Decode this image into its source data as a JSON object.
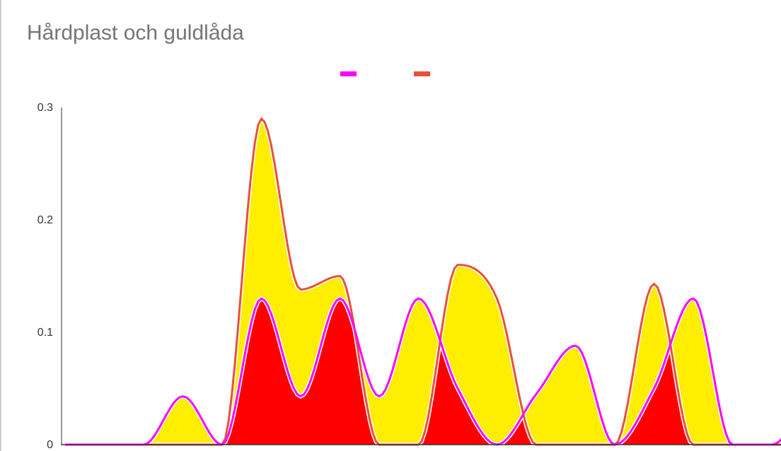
{
  "colors": {
    "series_a": "#ff00ff",
    "series_b": "#e8503a",
    "fill_yellow": "#ffee00",
    "fill_red": "#ff0000",
    "axis": "#333333",
    "title": "#757575"
  },
  "chart_data": {
    "type": "area",
    "title": "Hårdplast och guldlåda",
    "xlabel": "",
    "ylabel": "",
    "ylim": [
      0,
      0.3
    ],
    "y_ticks": [
      "0",
      "0.1",
      "0.2",
      "0.3"
    ],
    "grid": false,
    "legend": "top-center",
    "x": [
      0,
      1,
      2,
      3,
      4,
      5,
      6,
      7,
      8,
      9,
      10,
      11,
      12,
      13,
      14,
      15,
      16,
      17,
      18,
      19,
      20
    ],
    "series": [
      {
        "values": [
          0,
          0,
          0,
          0.043,
          0,
          0.13,
          0.043,
          0.13,
          0.043,
          0.13,
          0.05,
          0,
          0.045,
          0.088,
          0,
          0.05,
          0.13,
          0,
          0,
          0.045,
          0.09
        ]
      },
      {
        "values": [
          0,
          0,
          0,
          0,
          0,
          0.29,
          0.138,
          0.15,
          0,
          0,
          0.16,
          0.13,
          0,
          0,
          0,
          0.143,
          0,
          0,
          0,
          0,
          0
        ]
      }
    ]
  }
}
